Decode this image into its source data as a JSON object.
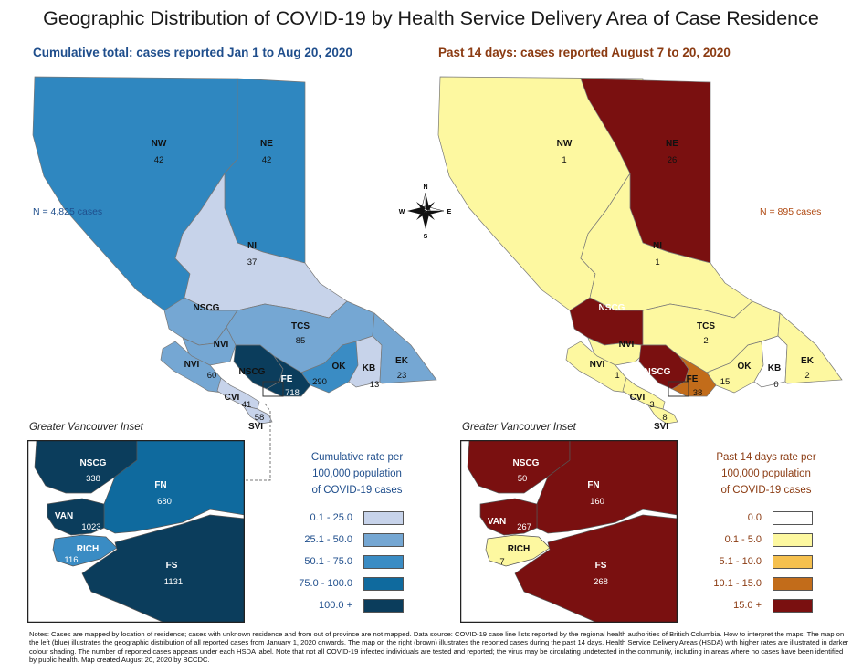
{
  "title": "Geographic Distribution of COVID-19 by Health Service Delivery Area of Case Residence",
  "left": {
    "subtitle": "Cumulative total: cases reported Jan 1 to Aug 20, 2020",
    "n_label": "N = 4,825 cases",
    "regions": {
      "NW": {
        "label": "NW",
        "value": "42"
      },
      "NE": {
        "label": "NE",
        "value": "42"
      },
      "NI": {
        "label": "NI",
        "value": "37"
      },
      "NSCG_main": {
        "label": "NSCG"
      },
      "NVI": {
        "label": "NVI",
        "value": "60"
      },
      "NVI_top": {
        "label": "NVI"
      },
      "NSCG_lower": {
        "label": "NSCG"
      },
      "TCS": {
        "label": "TCS",
        "value": "85"
      },
      "FE": {
        "label": "FE",
        "value": "718"
      },
      "OK": {
        "label": "OK",
        "value": "290"
      },
      "KB": {
        "label": "KB",
        "value": "13"
      },
      "EK": {
        "label": "EK",
        "value": "23"
      },
      "CVI": {
        "label": "CVI",
        "value": "41"
      },
      "SVI": {
        "label": "SVI",
        "value": "58"
      }
    },
    "inset_title": "Greater Vancouver Inset",
    "inset": {
      "NSCG": {
        "label": "NSCG",
        "value": "338"
      },
      "FN": {
        "label": "FN",
        "value": "680"
      },
      "VAN": {
        "label": "VAN",
        "value": "1023"
      },
      "RICH": {
        "label": "RICH",
        "value": "116"
      },
      "FS": {
        "label": "FS",
        "value": "1131"
      }
    },
    "legend": {
      "title_lines": [
        "Cumulative rate per",
        "100,000 population",
        "of COVID-19 cases"
      ],
      "items": [
        {
          "label": "0.1 - 25.0",
          "color": "#c7d3ea"
        },
        {
          "label": "25.1 - 50.0",
          "color": "#75a7d3"
        },
        {
          "label": "50.1 - 75.0",
          "color": "#3a8cc4"
        },
        {
          "label": "75.0 - 100.0",
          "color": "#0f6a9e"
        },
        {
          "label": "100.0 +",
          "color": "#0b3d5c"
        }
      ]
    }
  },
  "right": {
    "subtitle": "Past 14 days: cases reported August 7 to 20, 2020",
    "n_label": "N = 895 cases",
    "regions": {
      "NW": {
        "label": "NW",
        "value": "1"
      },
      "NE": {
        "label": "NE",
        "value": "26"
      },
      "NI": {
        "label": "NI",
        "value": "1"
      },
      "NSCG_main": {
        "label": "NSCG"
      },
      "NVI": {
        "label": "NVI",
        "value": "1"
      },
      "NVI_top": {
        "label": "NVI"
      },
      "NSCG_lower": {
        "label": "NSCG"
      },
      "TCS": {
        "label": "TCS",
        "value": "2"
      },
      "FE": {
        "label": "FE",
        "value": "38"
      },
      "OK": {
        "label": "OK",
        "value": "15"
      },
      "KB": {
        "label": "KB",
        "value": "0"
      },
      "EK": {
        "label": "EK",
        "value": "2"
      },
      "CVI": {
        "label": "CVI",
        "value": "3"
      },
      "SVI": {
        "label": "SVI",
        "value": "8"
      }
    },
    "inset_title": "Greater Vancouver Inset",
    "inset": {
      "NSCG": {
        "label": "NSCG",
        "value": "50"
      },
      "FN": {
        "label": "FN",
        "value": "160"
      },
      "VAN": {
        "label": "VAN",
        "value": "267"
      },
      "RICH": {
        "label": "RICH",
        "value": "7"
      },
      "FS": {
        "label": "FS",
        "value": "268"
      }
    },
    "legend": {
      "title_lines": [
        "Past 14 days rate per",
        "100,000 population",
        "of COVID-19 cases"
      ],
      "items": [
        {
          "label": "0.0",
          "color": "#ffffff"
        },
        {
          "label": "0.1 - 5.0",
          "color": "#fdf8a0"
        },
        {
          "label": "5.1 - 10.0",
          "color": "#f5c04e"
        },
        {
          "label": "10.1 - 15.0",
          "color": "#c26c1a"
        },
        {
          "label": "15.0 +",
          "color": "#7a1010"
        }
      ]
    }
  },
  "compass": {
    "n": "N",
    "s": "S",
    "e": "E",
    "w": "W"
  },
  "notes": "Notes: Cases are mapped by location of residence; cases with unknown residence and from out of province are not mapped. Data source: COVID-19 case line lists reported by the regional health authorities of British Columbia. How to interpret the maps: The map on the left (blue) illustrates the geographic distribution of all reported cases from January 1, 2020 onwards. The map on the right (brown) illustrates the reported cases during the past 14 days. Health Service Delivery Areas (HSDA) with higher rates are illustrated in darker colour shading. The number of reported cases appears under each HSDA label. Note that not all COVID-19 infected individuals are tested and reported; the virus may be circulating undetected in the community, including in areas where no cases have been identified by public health. Map created August 20, 2020 by BCCDC."
}
